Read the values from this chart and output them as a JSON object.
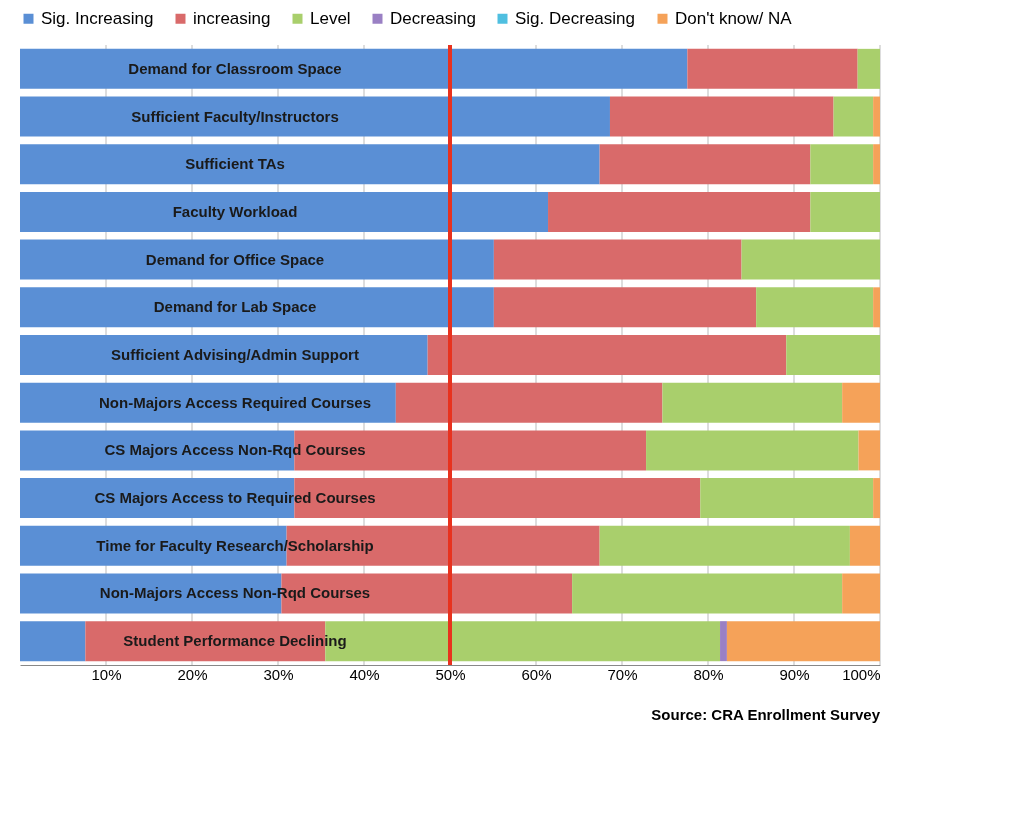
{
  "chart_data": {
    "type": "bar",
    "orientation": "horizontal",
    "stacked": true,
    "legend": "top",
    "grid": "x",
    "categories": [
      "Demand for Classroom Space",
      "Sufficient Faculty/Instructors",
      "Sufficient TAs",
      "Faculty Workload",
      "Demand for Office Space",
      "Demand for Lab Space",
      "Sufficient Advising/Admin Support",
      "Non-Majors Access Required Courses",
      "CS Majors Access Non-Rqd Courses",
      "CS Majors Access to Required Courses",
      "Time for Faculty  Research/Scholarship",
      "Non-Majors Access Non-Rqd Courses",
      "Student Performance Declining"
    ],
    "series": [
      {
        "name": "Sig. Increasing",
        "color": "#5a8fd5",
        "values": [
          77.6,
          68.6,
          67.4,
          61.4,
          55.1,
          55.1,
          47.4,
          43.7,
          31.9,
          31.9,
          31.0,
          30.4,
          7.6
        ]
      },
      {
        "name": "increasing",
        "color": "#d96a6a",
        "values": [
          19.8,
          26.0,
          24.5,
          30.5,
          28.8,
          30.5,
          41.7,
          31.0,
          40.9,
          47.2,
          36.4,
          33.8,
          27.9
        ]
      },
      {
        "name": "Level",
        "color": "#a9cf6c",
        "values": [
          2.6,
          4.6,
          7.3,
          8.1,
          16.1,
          13.6,
          10.9,
          20.9,
          24.7,
          20.1,
          29.1,
          31.4,
          45.9
        ]
      },
      {
        "name": "Decreasing",
        "color": "#9a80c4",
        "values": [
          null,
          null,
          null,
          null,
          null,
          null,
          null,
          null,
          null,
          null,
          null,
          null,
          0.8
        ]
      },
      {
        "name": "Sig. Decreasing",
        "color": "#4fbfe0",
        "values": [
          null,
          null,
          null,
          null,
          null,
          null,
          null,
          null,
          null,
          null,
          null,
          null,
          null
        ]
      },
      {
        "name": "Don't know/ NA",
        "color": "#f5a259",
        "values": [
          null,
          0.8,
          0.8,
          null,
          null,
          0.8,
          null,
          4.4,
          2.5,
          0.8,
          3.5,
          4.4,
          17.8
        ]
      }
    ],
    "xlim": [
      0,
      100
    ],
    "xticks": [
      {
        "value": 10,
        "label": "10%"
      },
      {
        "value": 20,
        "label": "20%"
      },
      {
        "value": 30,
        "label": "30%"
      },
      {
        "value": 40,
        "label": "40%"
      },
      {
        "value": 50,
        "label": "50%"
      },
      {
        "value": 60,
        "label": "60%"
      },
      {
        "value": 70,
        "label": "70%"
      },
      {
        "value": 80,
        "label": "80%"
      },
      {
        "value": 90,
        "label": "90%"
      },
      {
        "value": 100,
        "label": "100%"
      }
    ],
    "ref_lines": [
      {
        "axis": "x",
        "value": 50,
        "label": null,
        "color": "#e8321e"
      }
    ],
    "annotations": [
      "Source: CRA Enrollment Survey"
    ]
  }
}
